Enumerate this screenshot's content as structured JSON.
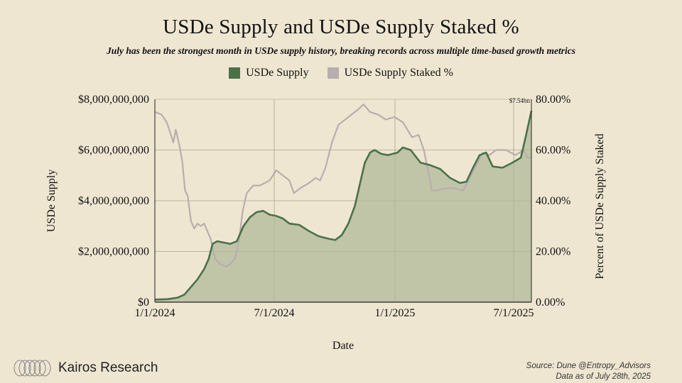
{
  "colors": {
    "background": "#efe6d2",
    "supply_line": "#4b7149",
    "supply_fill": "#bcc2a4",
    "staked_line": "#b8aeae",
    "grid": "#c9c0a8",
    "axis": "#222222"
  },
  "brand": {
    "name": "Kairos Research",
    "icon": "kairos-rings-logo"
  },
  "source": {
    "line1": "Source: Dune @Entropy_Advisors",
    "line2": "Data as of July 28th, 2025"
  },
  "chart_data": {
    "type": "area",
    "title": "USDe Supply and USDe Supply Staked %",
    "subtitle": "July has been the strongest month in USDe supply history, breaking records across multiple time-based growth metrics",
    "xlabel": "Date",
    "ylabel": "USDe Supply",
    "y2label": "Percent of USDe Supply Staked",
    "x_ticks": [
      "1/1/2024",
      "7/1/2024",
      "1/1/2025",
      "7/1/2025"
    ],
    "y_ticks": [
      "$0",
      "$2,000,000,000",
      "$4,000,000,000",
      "$6,000,000,000",
      "$8,000,000,000"
    ],
    "y2_ticks": [
      "0.00%",
      "20.00%",
      "40.00%",
      "60.00%",
      "80.00%"
    ],
    "xlim_days": [
      0,
      574
    ],
    "ylim": [
      0,
      8000000000
    ],
    "y2lim": [
      0,
      80
    ],
    "legend": [
      "USDe Supply",
      "USDe Supply Staked %"
    ],
    "annotation": "$7.54bn",
    "grid": true,
    "series": [
      {
        "name": "USDe Supply",
        "axis": "left",
        "unit": "billion USD",
        "points": [
          [
            0,
            0.1
          ],
          [
            20,
            0.12
          ],
          [
            35,
            0.18
          ],
          [
            45,
            0.3
          ],
          [
            55,
            0.6
          ],
          [
            65,
            0.9
          ],
          [
            75,
            1.3
          ],
          [
            82,
            1.7
          ],
          [
            88,
            2.3
          ],
          [
            95,
            2.4
          ],
          [
            105,
            2.35
          ],
          [
            115,
            2.3
          ],
          [
            125,
            2.4
          ],
          [
            135,
            3.0
          ],
          [
            145,
            3.35
          ],
          [
            155,
            3.55
          ],
          [
            165,
            3.6
          ],
          [
            175,
            3.45
          ],
          [
            185,
            3.4
          ],
          [
            195,
            3.3
          ],
          [
            205,
            3.1
          ],
          [
            220,
            3.05
          ],
          [
            235,
            2.8
          ],
          [
            250,
            2.6
          ],
          [
            265,
            2.5
          ],
          [
            275,
            2.45
          ],
          [
            285,
            2.65
          ],
          [
            295,
            3.1
          ],
          [
            305,
            3.8
          ],
          [
            312,
            4.6
          ],
          [
            320,
            5.5
          ],
          [
            328,
            5.9
          ],
          [
            335,
            6.0
          ],
          [
            345,
            5.85
          ],
          [
            355,
            5.8
          ],
          [
            370,
            5.9
          ],
          [
            378,
            6.1
          ],
          [
            390,
            6.0
          ],
          [
            405,
            5.5
          ],
          [
            420,
            5.4
          ],
          [
            435,
            5.25
          ],
          [
            450,
            4.9
          ],
          [
            465,
            4.7
          ],
          [
            475,
            4.75
          ],
          [
            485,
            5.3
          ],
          [
            495,
            5.8
          ],
          [
            505,
            5.9
          ],
          [
            515,
            5.35
          ],
          [
            530,
            5.3
          ],
          [
            545,
            5.5
          ],
          [
            558,
            5.7
          ],
          [
            566,
            6.6
          ],
          [
            574,
            7.54
          ]
        ]
      },
      {
        "name": "USDe Supply Staked %",
        "axis": "right",
        "unit": "percent",
        "points": [
          [
            0,
            75
          ],
          [
            10,
            74
          ],
          [
            18,
            71
          ],
          [
            22,
            68
          ],
          [
            28,
            63
          ],
          [
            32,
            68
          ],
          [
            38,
            61
          ],
          [
            42,
            55
          ],
          [
            46,
            44
          ],
          [
            50,
            42
          ],
          [
            55,
            32
          ],
          [
            60,
            29
          ],
          [
            65,
            31
          ],
          [
            70,
            30
          ],
          [
            75,
            31
          ],
          [
            80,
            28
          ],
          [
            85,
            25
          ],
          [
            92,
            17
          ],
          [
            100,
            15
          ],
          [
            108,
            14
          ],
          [
            115,
            15
          ],
          [
            122,
            17
          ],
          [
            128,
            24
          ],
          [
            134,
            36
          ],
          [
            140,
            43
          ],
          [
            150,
            46
          ],
          [
            160,
            46
          ],
          [
            175,
            48
          ],
          [
            185,
            52
          ],
          [
            195,
            50
          ],
          [
            205,
            48
          ],
          [
            212,
            43
          ],
          [
            222,
            45
          ],
          [
            235,
            47
          ],
          [
            245,
            49
          ],
          [
            252,
            48
          ],
          [
            260,
            53
          ],
          [
            270,
            63
          ],
          [
            280,
            70
          ],
          [
            290,
            72
          ],
          [
            300,
            74
          ],
          [
            310,
            76
          ],
          [
            318,
            78
          ],
          [
            328,
            75
          ],
          [
            340,
            74
          ],
          [
            352,
            72
          ],
          [
            365,
            73
          ],
          [
            378,
            71
          ],
          [
            392,
            65
          ],
          [
            402,
            66
          ],
          [
            410,
            60
          ],
          [
            418,
            50
          ],
          [
            422,
            44
          ],
          [
            430,
            44
          ],
          [
            445,
            45
          ],
          [
            455,
            45
          ],
          [
            470,
            44
          ],
          [
            478,
            48
          ],
          [
            490,
            54
          ],
          [
            500,
            59
          ],
          [
            510,
            58
          ],
          [
            520,
            60
          ],
          [
            535,
            60
          ],
          [
            550,
            58
          ],
          [
            562,
            60
          ],
          [
            568,
            57
          ],
          [
            574,
            57
          ]
        ]
      }
    ]
  }
}
